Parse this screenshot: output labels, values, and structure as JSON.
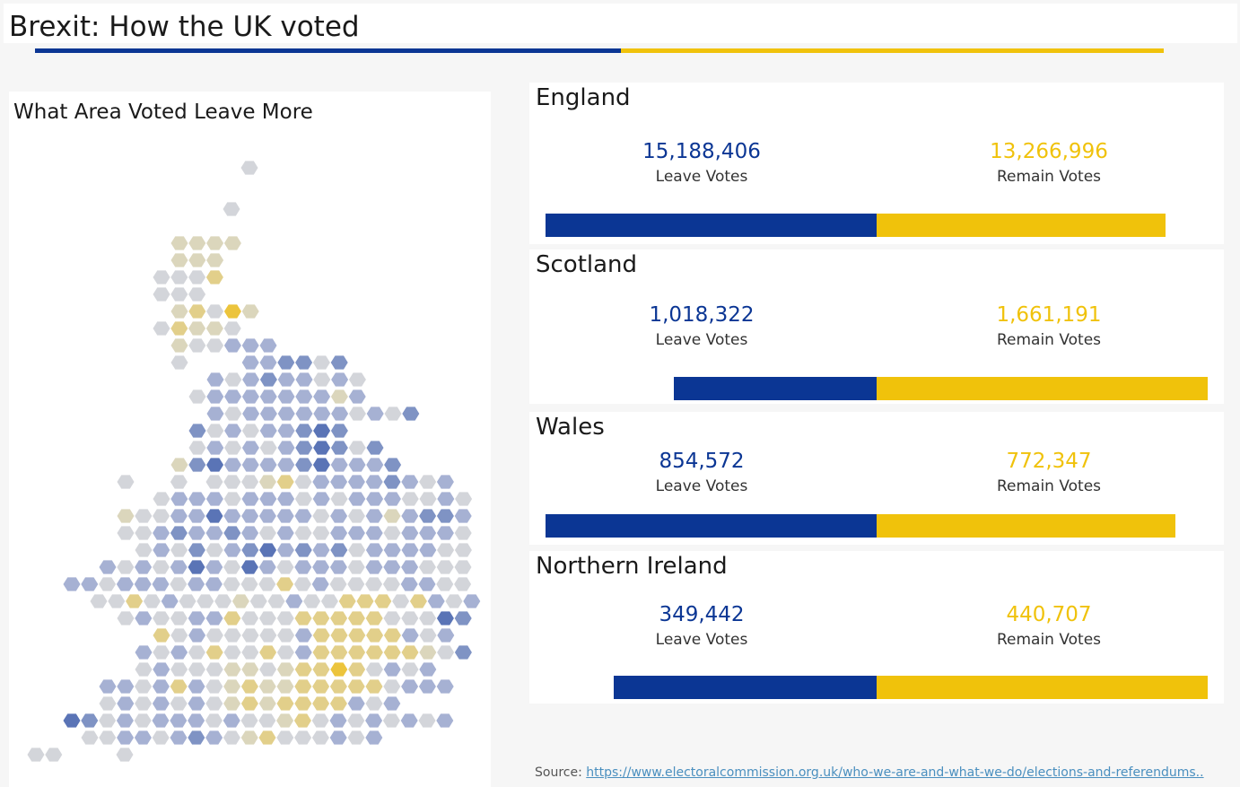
{
  "header": {
    "title": "Brexit: How the UK voted",
    "accent_leave": "#0b3694",
    "accent_remain": "#f0c20b"
  },
  "map": {
    "title": "What Area Voted Leave More",
    "palette": {
      "leave_strong": "#5a74b6",
      "leave_mid": "#7f93c4",
      "leave_light": "#a6b1d3",
      "neutral": "#d3d5da",
      "remain_light": "#dbd6bc",
      "remain_mid": "#e2cf8a",
      "remain_strong": "#ecc43c"
    }
  },
  "chart_data": {
    "type": "bar",
    "orientation": "horizontal-diverging",
    "categories": [
      "England",
      "Scotland",
      "Wales",
      "Northern Ireland"
    ],
    "series": [
      {
        "name": "Leave Votes",
        "values": [
          15188406,
          1018322,
          854572,
          349442
        ]
      },
      {
        "name": "Remain Votes",
        "values": [
          13266996,
          1661191,
          772347,
          440707
        ]
      }
    ]
  },
  "cards": [
    {
      "name": "England",
      "leave": "15,188,406",
      "remain": "13,266,996",
      "leave_label": "Leave Votes",
      "remain_label": "Remain Votes"
    },
    {
      "name": "Scotland",
      "leave": "1,018,322",
      "remain": "1,661,191",
      "leave_label": "Leave Votes",
      "remain_label": "Remain Votes"
    },
    {
      "name": "Wales",
      "leave": "854,572",
      "remain": "772,347",
      "leave_label": "Leave Votes",
      "remain_label": "Remain Votes"
    },
    {
      "name": "Northern Ireland",
      "leave": "349,442",
      "remain": "440,707",
      "leave_label": "Leave Votes",
      "remain_label": "Remain Votes"
    }
  ],
  "source": {
    "label": "Source:",
    "link_text": "https://www.electoralcommission.org.uk/who-we-are-and-what-we-do/elections-and-referendums.."
  }
}
